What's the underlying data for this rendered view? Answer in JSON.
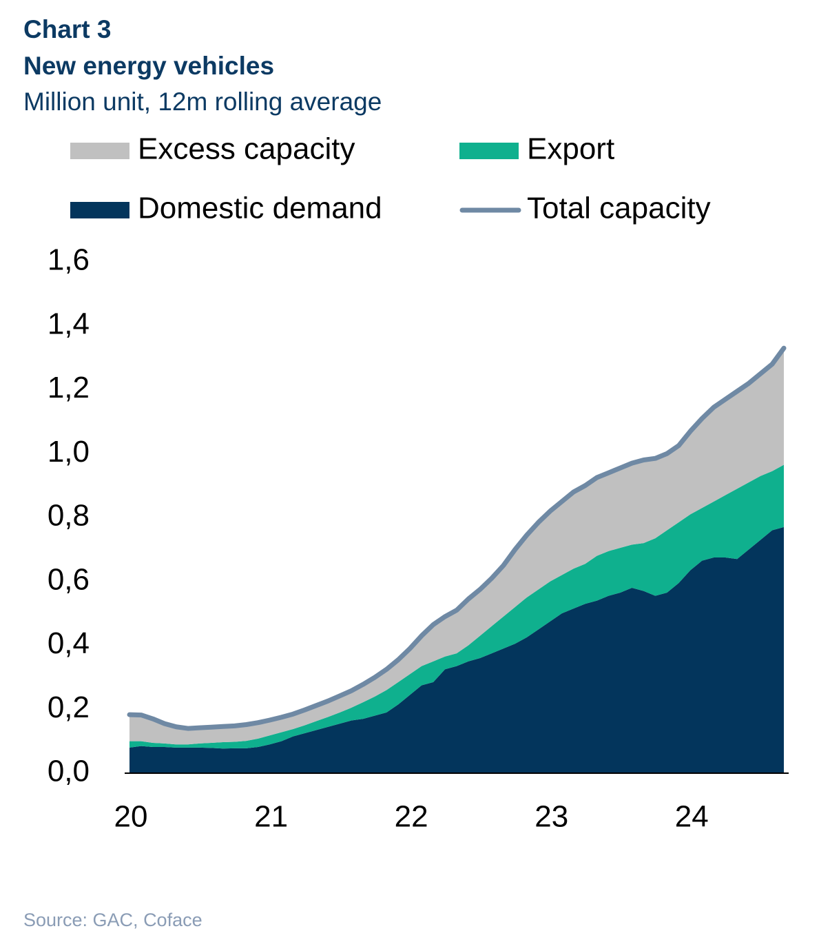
{
  "chart_data": {
    "type": "area",
    "title": "Chart 3",
    "subtitle": "New energy vehicles",
    "y_label": "Million unit, 12m rolling average",
    "source": "Source: GAC, Coface",
    "categories": [
      "20",
      null,
      null,
      null,
      null,
      null,
      null,
      null,
      null,
      null,
      null,
      null,
      "21",
      null,
      null,
      null,
      null,
      null,
      null,
      null,
      null,
      null,
      null,
      null,
      "22",
      null,
      null,
      null,
      null,
      null,
      null,
      null,
      null,
      null,
      null,
      null,
      "23",
      null,
      null,
      null,
      null,
      null,
      null,
      null,
      null,
      null,
      null,
      null,
      "24",
      null,
      null,
      null,
      null,
      null,
      null,
      null,
      null
    ],
    "series": [
      {
        "name": "Excess capacity",
        "color": "#c0c0c0",
        "values": [
          0.083,
          0.082,
          0.075,
          0.062,
          0.055,
          0.05,
          0.049,
          0.049,
          0.049,
          0.05,
          0.051,
          0.05,
          0.048,
          0.047,
          0.047,
          0.048,
          0.049,
          0.05,
          0.052,
          0.053,
          0.056,
          0.06,
          0.065,
          0.07,
          0.08,
          0.095,
          0.115,
          0.125,
          0.135,
          0.145,
          0.145,
          0.15,
          0.16,
          0.18,
          0.195,
          0.21,
          0.22,
          0.23,
          0.24,
          0.245,
          0.245,
          0.245,
          0.25,
          0.255,
          0.26,
          0.25,
          0.24,
          0.24,
          0.26,
          0.28,
          0.295,
          0.3,
          0.305,
          0.31,
          0.32,
          0.335,
          0.365
        ]
      },
      {
        "name": "Export",
        "color": "#0fb08e",
        "values": [
          0.02,
          0.015,
          0.013,
          0.011,
          0.01,
          0.01,
          0.013,
          0.016,
          0.02,
          0.02,
          0.023,
          0.026,
          0.028,
          0.028,
          0.023,
          0.025,
          0.028,
          0.031,
          0.035,
          0.04,
          0.052,
          0.06,
          0.07,
          0.07,
          0.065,
          0.06,
          0.065,
          0.04,
          0.04,
          0.05,
          0.07,
          0.085,
          0.1,
          0.115,
          0.125,
          0.125,
          0.125,
          0.12,
          0.125,
          0.125,
          0.14,
          0.14,
          0.14,
          0.135,
          0.15,
          0.18,
          0.195,
          0.19,
          0.175,
          0.165,
          0.175,
          0.195,
          0.22,
          0.21,
          0.2,
          0.185,
          0.195
        ]
      },
      {
        "name": "Domestic demand",
        "color": "#03355c",
        "values": [
          0.08,
          0.085,
          0.082,
          0.082,
          0.08,
          0.08,
          0.08,
          0.079,
          0.077,
          0.078,
          0.078,
          0.082,
          0.09,
          0.1,
          0.115,
          0.125,
          0.135,
          0.145,
          0.155,
          0.165,
          0.17,
          0.18,
          0.19,
          0.215,
          0.245,
          0.275,
          0.285,
          0.325,
          0.335,
          0.35,
          0.36,
          0.375,
          0.39,
          0.405,
          0.425,
          0.45,
          0.475,
          0.5,
          0.515,
          0.53,
          0.54,
          0.555,
          0.565,
          0.58,
          0.57,
          0.555,
          0.565,
          0.595,
          0.635,
          0.665,
          0.675,
          0.675,
          0.67,
          0.7,
          0.73,
          0.76,
          0.77
        ]
      },
      {
        "name": "Total capacity",
        "type": "line",
        "color": "#6f89a4",
        "values": [
          0.183,
          0.182,
          0.17,
          0.155,
          0.145,
          0.14,
          0.142,
          0.144,
          0.146,
          0.148,
          0.152,
          0.158,
          0.166,
          0.175,
          0.185,
          0.198,
          0.212,
          0.226,
          0.242,
          0.258,
          0.278,
          0.3,
          0.325,
          0.355,
          0.39,
          0.43,
          0.465,
          0.49,
          0.51,
          0.545,
          0.575,
          0.61,
          0.65,
          0.7,
          0.745,
          0.785,
          0.82,
          0.85,
          0.88,
          0.9,
          0.925,
          0.94,
          0.955,
          0.97,
          0.98,
          0.985,
          1.0,
          1.025,
          1.07,
          1.11,
          1.145,
          1.17,
          1.195,
          1.22,
          1.25,
          1.28,
          1.33
        ]
      }
    ],
    "ylim": [
      0,
      1.6
    ],
    "yticks": [
      {
        "value": 0,
        "label": "0,0"
      },
      {
        "value": 0.2,
        "label": "0,2"
      },
      {
        "value": 0.4,
        "label": "0,4"
      },
      {
        "value": 0.6,
        "label": "0,6"
      },
      {
        "value": 0.8,
        "label": "0,8"
      },
      {
        "value": 1.0,
        "label": "1,0"
      },
      {
        "value": 1.2,
        "label": "1,2"
      },
      {
        "value": 1.4,
        "label": "1,4"
      },
      {
        "value": 1.6,
        "label": "1,6"
      }
    ],
    "grid": false
  }
}
